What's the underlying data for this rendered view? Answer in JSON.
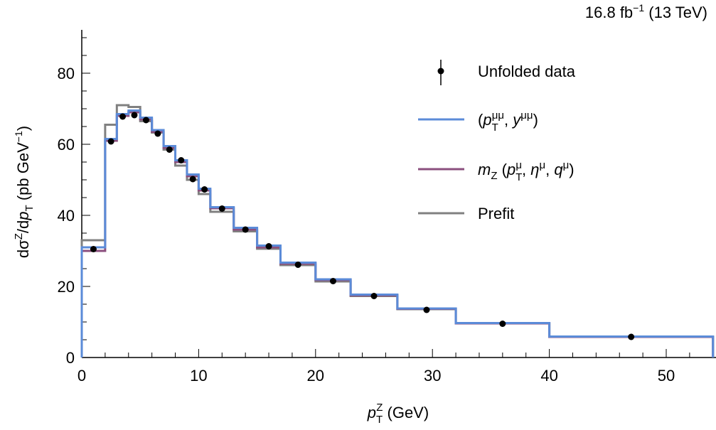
{
  "chart_data": {
    "type": "step-histogram",
    "annotation": "16.8 fb⁻¹ (13 TeV)",
    "xlabel": "p_T^Z (GeV)",
    "ylabel": "dσ^Z/dp_T (pb GeV⁻¹)",
    "xlim": [
      0,
      54
    ],
    "ylim": [
      0,
      92
    ],
    "xticks": [
      0,
      10,
      20,
      30,
      40,
      50
    ],
    "yticks": [
      0,
      20,
      40,
      60,
      80
    ],
    "grid": false,
    "legend_placement": "top-right",
    "bin_edges": [
      0,
      2,
      3,
      4,
      5,
      6,
      7,
      8,
      9,
      10,
      11,
      13,
      15,
      17,
      20,
      23,
      27,
      32,
      40,
      54
    ],
    "data": {
      "name": "Unfolded data",
      "color": "#000000",
      "x": [
        1,
        2.5,
        3.5,
        4.5,
        5.5,
        6.5,
        7.5,
        8.5,
        9.5,
        10.5,
        12,
        14,
        16,
        18.5,
        21.5,
        25,
        29.5,
        36,
        47
      ],
      "y": [
        30.5,
        60.8,
        67.8,
        68.2,
        66.8,
        63,
        58.5,
        55.5,
        50.2,
        47.3,
        41.9,
        36,
        31.3,
        26.1,
        21.5,
        17.3,
        13.4,
        9.5,
        5.8
      ]
    },
    "series": [
      {
        "name": "Prefit",
        "color": "#808080",
        "values": [
          33,
          65.5,
          71,
          70.5,
          66.5,
          63.3,
          58.5,
          54,
          50,
          46,
          41,
          35.5,
          30.6,
          26,
          21.4,
          17.3,
          13.6,
          9.6,
          5.8
        ]
      },
      {
        "name": "m_Z (p_T^μ, η^μ, q^μ)",
        "color": "#8b4f7e",
        "values": [
          30,
          61,
          68,
          69,
          67,
          63.5,
          59,
          55,
          51,
          47,
          42,
          36,
          31,
          26.4,
          21.8,
          17.5,
          13.7,
          9.6,
          5.8
        ]
      },
      {
        "name": "(p_T^μμ, y^μμ)",
        "color": "#5b8bd8",
        "values": [
          31,
          61.5,
          68.5,
          69.5,
          67.5,
          64,
          59.5,
          55.5,
          51.5,
          47.5,
          42.3,
          36.5,
          31.5,
          26.7,
          22,
          17.7,
          13.8,
          9.7,
          5.9
        ]
      }
    ]
  }
}
